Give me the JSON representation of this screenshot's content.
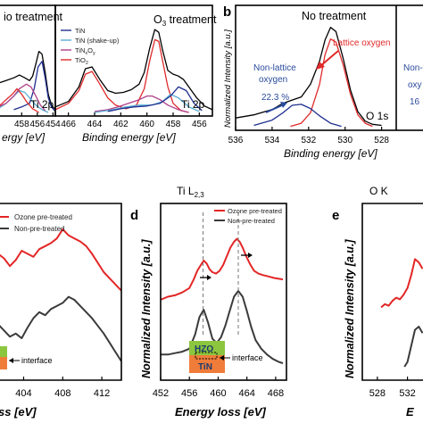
{
  "colors": {
    "frame": "#000000",
    "fit_total": "#000000",
    "TiN": "#1f2f8f",
    "TiN_shakeup": "#5aaed6",
    "TiNxOy": "#b0408a",
    "TiO2": "#e02a2a",
    "ozone_pre_treated": "#e32626",
    "non_pre_treated": "#3b3b3b",
    "annotation_blue": "#2a4b9c",
    "annotation_red": "#e02a2a",
    "inset_green": "#8cc63f",
    "inset_orange": "#f07c3a"
  },
  "chart_data": [
    {
      "id": "a-left",
      "type": "line",
      "title": "io treatment",
      "xlabel": "ergy [eV]",
      "ylabel": "",
      "corner_label": "Ti 2p",
      "x_ticks": [
        "458",
        "456",
        "454"
      ],
      "series": [
        {
          "key": "fit_total",
          "x": [
            461,
            460,
            459,
            458.3,
            457.6,
            457,
            456.6,
            456.2,
            455.8,
            455.4,
            455,
            454.6,
            454.2,
            453.8
          ],
          "y": [
            0.34,
            0.37,
            0.4,
            0.43,
            0.4,
            0.37,
            0.42,
            0.55,
            0.69,
            0.66,
            0.46,
            0.22,
            0.1,
            0.06
          ]
        },
        {
          "key": "TiN",
          "x": [
            459,
            458,
            457,
            456.4,
            455.9,
            455.4,
            455,
            454.6,
            454.2,
            453.8
          ],
          "y": [
            0.05,
            0.08,
            0.12,
            0.28,
            0.52,
            0.58,
            0.4,
            0.18,
            0.08,
            0.04
          ]
        },
        {
          "key": "TiN_shakeup",
          "x": [
            461,
            460,
            459,
            458.3,
            457.6,
            457,
            456.2,
            455.4,
            454.6
          ],
          "y": [
            0.06,
            0.12,
            0.2,
            0.26,
            0.24,
            0.18,
            0.1,
            0.05,
            0.02
          ]
        },
        {
          "key": "TiNxOy",
          "x": [
            461,
            460,
            459,
            458.3,
            457.4,
            456.8,
            456.2,
            455.6,
            455
          ],
          "y": [
            0.08,
            0.12,
            0.2,
            0.28,
            0.33,
            0.3,
            0.2,
            0.1,
            0.04
          ]
        },
        {
          "key": "TiO2",
          "x": [
            461,
            460,
            459.2,
            458.6,
            458,
            457.4,
            456.6,
            455.8
          ],
          "y": [
            0.08,
            0.16,
            0.22,
            0.28,
            0.22,
            0.14,
            0.06,
            0.02
          ]
        }
      ]
    },
    {
      "id": "a-right",
      "type": "line",
      "title": "O3 treatment",
      "xlabel": "Binding energy [eV]",
      "ylabel": "",
      "corner_label": "Ti 2p",
      "x_ticks": [
        "466",
        "464",
        "462",
        "460",
        "458",
        "456"
      ],
      "xlim": [
        467,
        455
      ],
      "ylim": [
        0,
        1
      ],
      "legend": [
        "TiN",
        "TiN (shake-up)",
        "TiNxOy",
        "TiO2"
      ],
      "legend_position": "top-left",
      "series": [
        {
          "key": "fit_total",
          "x": [
            467,
            466,
            465.2,
            464.7,
            464.2,
            463.6,
            463,
            462.4,
            461.8,
            461.2,
            460.6,
            460.2,
            459.8,
            459.4,
            459.1,
            458.8,
            458.4,
            458,
            457.6,
            457.2,
            456.8,
            456.2,
            455.6,
            455
          ],
          "y": [
            0.08,
            0.14,
            0.3,
            0.5,
            0.52,
            0.38,
            0.26,
            0.23,
            0.24,
            0.27,
            0.33,
            0.46,
            0.72,
            0.93,
            0.9,
            0.7,
            0.48,
            0.44,
            0.42,
            0.38,
            0.3,
            0.18,
            0.09,
            0.05
          ]
        },
        {
          "key": "TiO2",
          "x": [
            467,
            466,
            465.2,
            464.7,
            464.2,
            463.6,
            463,
            462.4,
            461.6,
            460.8,
            460.2,
            459.8,
            459.4,
            459.1,
            458.8,
            458.4,
            458,
            457.4,
            456.8
          ],
          "y": [
            0.05,
            0.12,
            0.26,
            0.44,
            0.47,
            0.33,
            0.18,
            0.1,
            0.06,
            0.1,
            0.28,
            0.58,
            0.82,
            0.8,
            0.58,
            0.3,
            0.12,
            0.04,
            0.02
          ]
        },
        {
          "key": "TiNxOy",
          "x": [
            464,
            463,
            462.2,
            461.4,
            460.6,
            460,
            459.6,
            459,
            458.4,
            457.6,
            456.8
          ],
          "y": [
            0.03,
            0.05,
            0.08,
            0.12,
            0.16,
            0.2,
            0.2,
            0.16,
            0.1,
            0.05,
            0.02
          ]
        },
        {
          "key": "TiN_shakeup",
          "x": [
            464,
            462.6,
            461.6,
            460.6,
            459.6,
            458.8,
            458.2,
            457.6,
            456.8,
            456
          ],
          "y": [
            0.02,
            0.05,
            0.08,
            0.1,
            0.1,
            0.14,
            0.22,
            0.18,
            0.08,
            0.03
          ]
        },
        {
          "key": "TiN",
          "x": [
            463,
            462,
            461,
            460,
            459,
            458.2,
            457.6,
            457,
            456.4,
            455.8
          ],
          "y": [
            0.03,
            0.06,
            0.08,
            0.09,
            0.12,
            0.2,
            0.3,
            0.26,
            0.12,
            0.04
          ]
        }
      ]
    },
    {
      "id": "b",
      "type": "line",
      "panel_label": "b",
      "title": "No treatment",
      "xlabel": "Binding energy [eV]",
      "ylabel": "Normalized Intensity [a.u.]",
      "corner_label": "O 1s",
      "x_ticks": [
        "536",
        "534",
        "532",
        "530",
        "528"
      ],
      "xlim": [
        536,
        527.2
      ],
      "ylim": [
        0,
        1
      ],
      "annotations": [
        "Lattice oxygen",
        "Non-lattice oxygen 22.3 %",
        "Non-l",
        "oxy",
        "16"
      ],
      "series": [
        {
          "key": "fit_total",
          "x": [
            536,
            535,
            534,
            533.4,
            532.9,
            532.4,
            531.9,
            531.4,
            531.1,
            530.8,
            530.5,
            530.1,
            529.7,
            529.3,
            528.9,
            528.5,
            528
          ],
          "y": [
            0.1,
            0.13,
            0.18,
            0.24,
            0.27,
            0.3,
            0.42,
            0.64,
            0.84,
            0.96,
            0.92,
            0.66,
            0.36,
            0.16,
            0.07,
            0.04,
            0.03
          ]
        },
        {
          "key": "TiO2",
          "x": [
            533,
            532.4,
            531.9,
            531.4,
            531.1,
            530.8,
            530.5,
            530.1,
            529.7,
            529.3,
            528.9,
            528.5
          ],
          "y": [
            0.02,
            0.05,
            0.15,
            0.42,
            0.7,
            0.85,
            0.82,
            0.6,
            0.32,
            0.13,
            0.05,
            0.02
          ]
        },
        {
          "key": "TiN",
          "x": [
            535,
            534,
            533.4,
            532.9,
            532.4,
            531.9,
            531.4,
            530.8,
            530.2
          ],
          "y": [
            0.03,
            0.08,
            0.15,
            0.22,
            0.23,
            0.19,
            0.12,
            0.05,
            0.02
          ]
        }
      ]
    },
    {
      "id": "c",
      "type": "line",
      "xlabel": "ss [eV]",
      "ylabel": "",
      "x_ticks": [
        "404",
        "408",
        "412"
      ],
      "xlim": [
        401.4,
        414
      ],
      "ylim": [
        0,
        1
      ],
      "legend": [
        "Ozone pre-treated",
        "Non-pre-treated"
      ],
      "legend_position": "top-left",
      "inset_labels": [
        "interface"
      ],
      "series": [
        {
          "key": "ozone_pre_treated",
          "x": [
            401.4,
            402,
            402.6,
            403.2,
            403.8,
            404.4,
            405,
            405.6,
            406.2,
            406.8,
            407.4,
            408,
            408.6,
            409.2,
            409.8,
            410.4,
            411,
            411.6,
            412.2,
            412.8,
            413.4,
            414
          ],
          "y": [
            0.8,
            0.77,
            0.72,
            0.76,
            0.82,
            0.8,
            0.78,
            0.83,
            0.85,
            0.87,
            0.9,
            0.96,
            0.92,
            0.9,
            0.88,
            0.85,
            0.8,
            0.74,
            0.68,
            0.64,
            0.6,
            0.56
          ]
        },
        {
          "key": "non_pre_treated",
          "x": [
            401.4,
            402,
            402.6,
            403.2,
            403.8,
            404.4,
            405,
            405.6,
            406.2,
            406.8,
            407.4,
            408,
            408.6,
            409.2,
            409.8,
            410.4,
            411,
            411.6,
            412.2,
            412.8,
            413.4,
            414
          ],
          "y": [
            0.34,
            0.3,
            0.26,
            0.28,
            0.25,
            0.32,
            0.38,
            0.42,
            0.4,
            0.44,
            0.46,
            0.48,
            0.52,
            0.5,
            0.46,
            0.42,
            0.38,
            0.33,
            0.28,
            0.22,
            0.16,
            0.1
          ]
        }
      ]
    },
    {
      "id": "d",
      "type": "line",
      "panel_label": "d",
      "title": "Ti L2,3",
      "xlabel": "Energy loss [eV]",
      "ylabel": "Normalized Intensity [a.u.]",
      "x_ticks": [
        "452",
        "456",
        "460",
        "464",
        "468"
      ],
      "xlim": [
        452,
        469.5
      ],
      "ylim": [
        0,
        1
      ],
      "legend": [
        "Ozone pre-treated",
        "Non-pre-treated"
      ],
      "legend_position": "top-right",
      "inset_labels": [
        "HZO",
        "TiN",
        "interface"
      ],
      "reference_lines_x": [
        457.9,
        462.8
      ],
      "series": [
        {
          "key": "ozone_pre_treated",
          "x": [
            452,
            453,
            454,
            455,
            456,
            456.6,
            457.1,
            457.6,
            458,
            458.4,
            458.8,
            459.2,
            459.7,
            460.2,
            460.7,
            461.2,
            461.7,
            462.2,
            462.6,
            463,
            463.4,
            463.9,
            464.5,
            465,
            465.6,
            466.2,
            467,
            467.8,
            469
          ],
          "y": [
            0.52,
            0.54,
            0.55,
            0.57,
            0.6,
            0.66,
            0.72,
            0.76,
            0.79,
            0.77,
            0.73,
            0.71,
            0.7,
            0.72,
            0.76,
            0.82,
            0.88,
            0.92,
            0.94,
            0.92,
            0.88,
            0.82,
            0.76,
            0.72,
            0.7,
            0.69,
            0.68,
            0.67,
            0.66
          ]
        },
        {
          "key": "non_pre_treated",
          "x": [
            452,
            453,
            454,
            455,
            456,
            456.8,
            457.4,
            458,
            458.6,
            459.2,
            459.8,
            460.4,
            461,
            461.6,
            462.2,
            462.8,
            463.4,
            464,
            464.6,
            465.2,
            466,
            466.8,
            467.6,
            468.4,
            469
          ],
          "y": [
            0.14,
            0.14,
            0.15,
            0.16,
            0.18,
            0.28,
            0.4,
            0.45,
            0.36,
            0.25,
            0.22,
            0.26,
            0.34,
            0.44,
            0.54,
            0.58,
            0.54,
            0.44,
            0.33,
            0.24,
            0.18,
            0.14,
            0.11,
            0.09,
            0.08
          ]
        }
      ]
    },
    {
      "id": "e",
      "type": "line",
      "panel_label": "e",
      "title": "O K",
      "xlabel": "E",
      "ylabel": "Normalized Intensity [a.u.]",
      "x_ticks": [
        "528",
        "532"
      ],
      "xlim": [
        526,
        534.3
      ],
      "ylim": [
        0,
        1
      ],
      "series": [
        {
          "key": "ozone_pre_treated",
          "x": [
            528.5,
            529,
            529.5,
            530,
            530.5,
            531,
            531.5,
            532,
            532.5,
            533,
            533.5,
            534
          ],
          "y": [
            0.42,
            0.44,
            0.43,
            0.46,
            0.48,
            0.47,
            0.5,
            0.54,
            0.62,
            0.72,
            0.7,
            0.66
          ]
        },
        {
          "key": "non_pre_treated",
          "x": [
            531.6,
            532,
            532.5,
            533,
            533.5,
            534
          ],
          "y": [
            0.05,
            0.08,
            0.18,
            0.28,
            0.3,
            0.26
          ]
        }
      ]
    }
  ]
}
